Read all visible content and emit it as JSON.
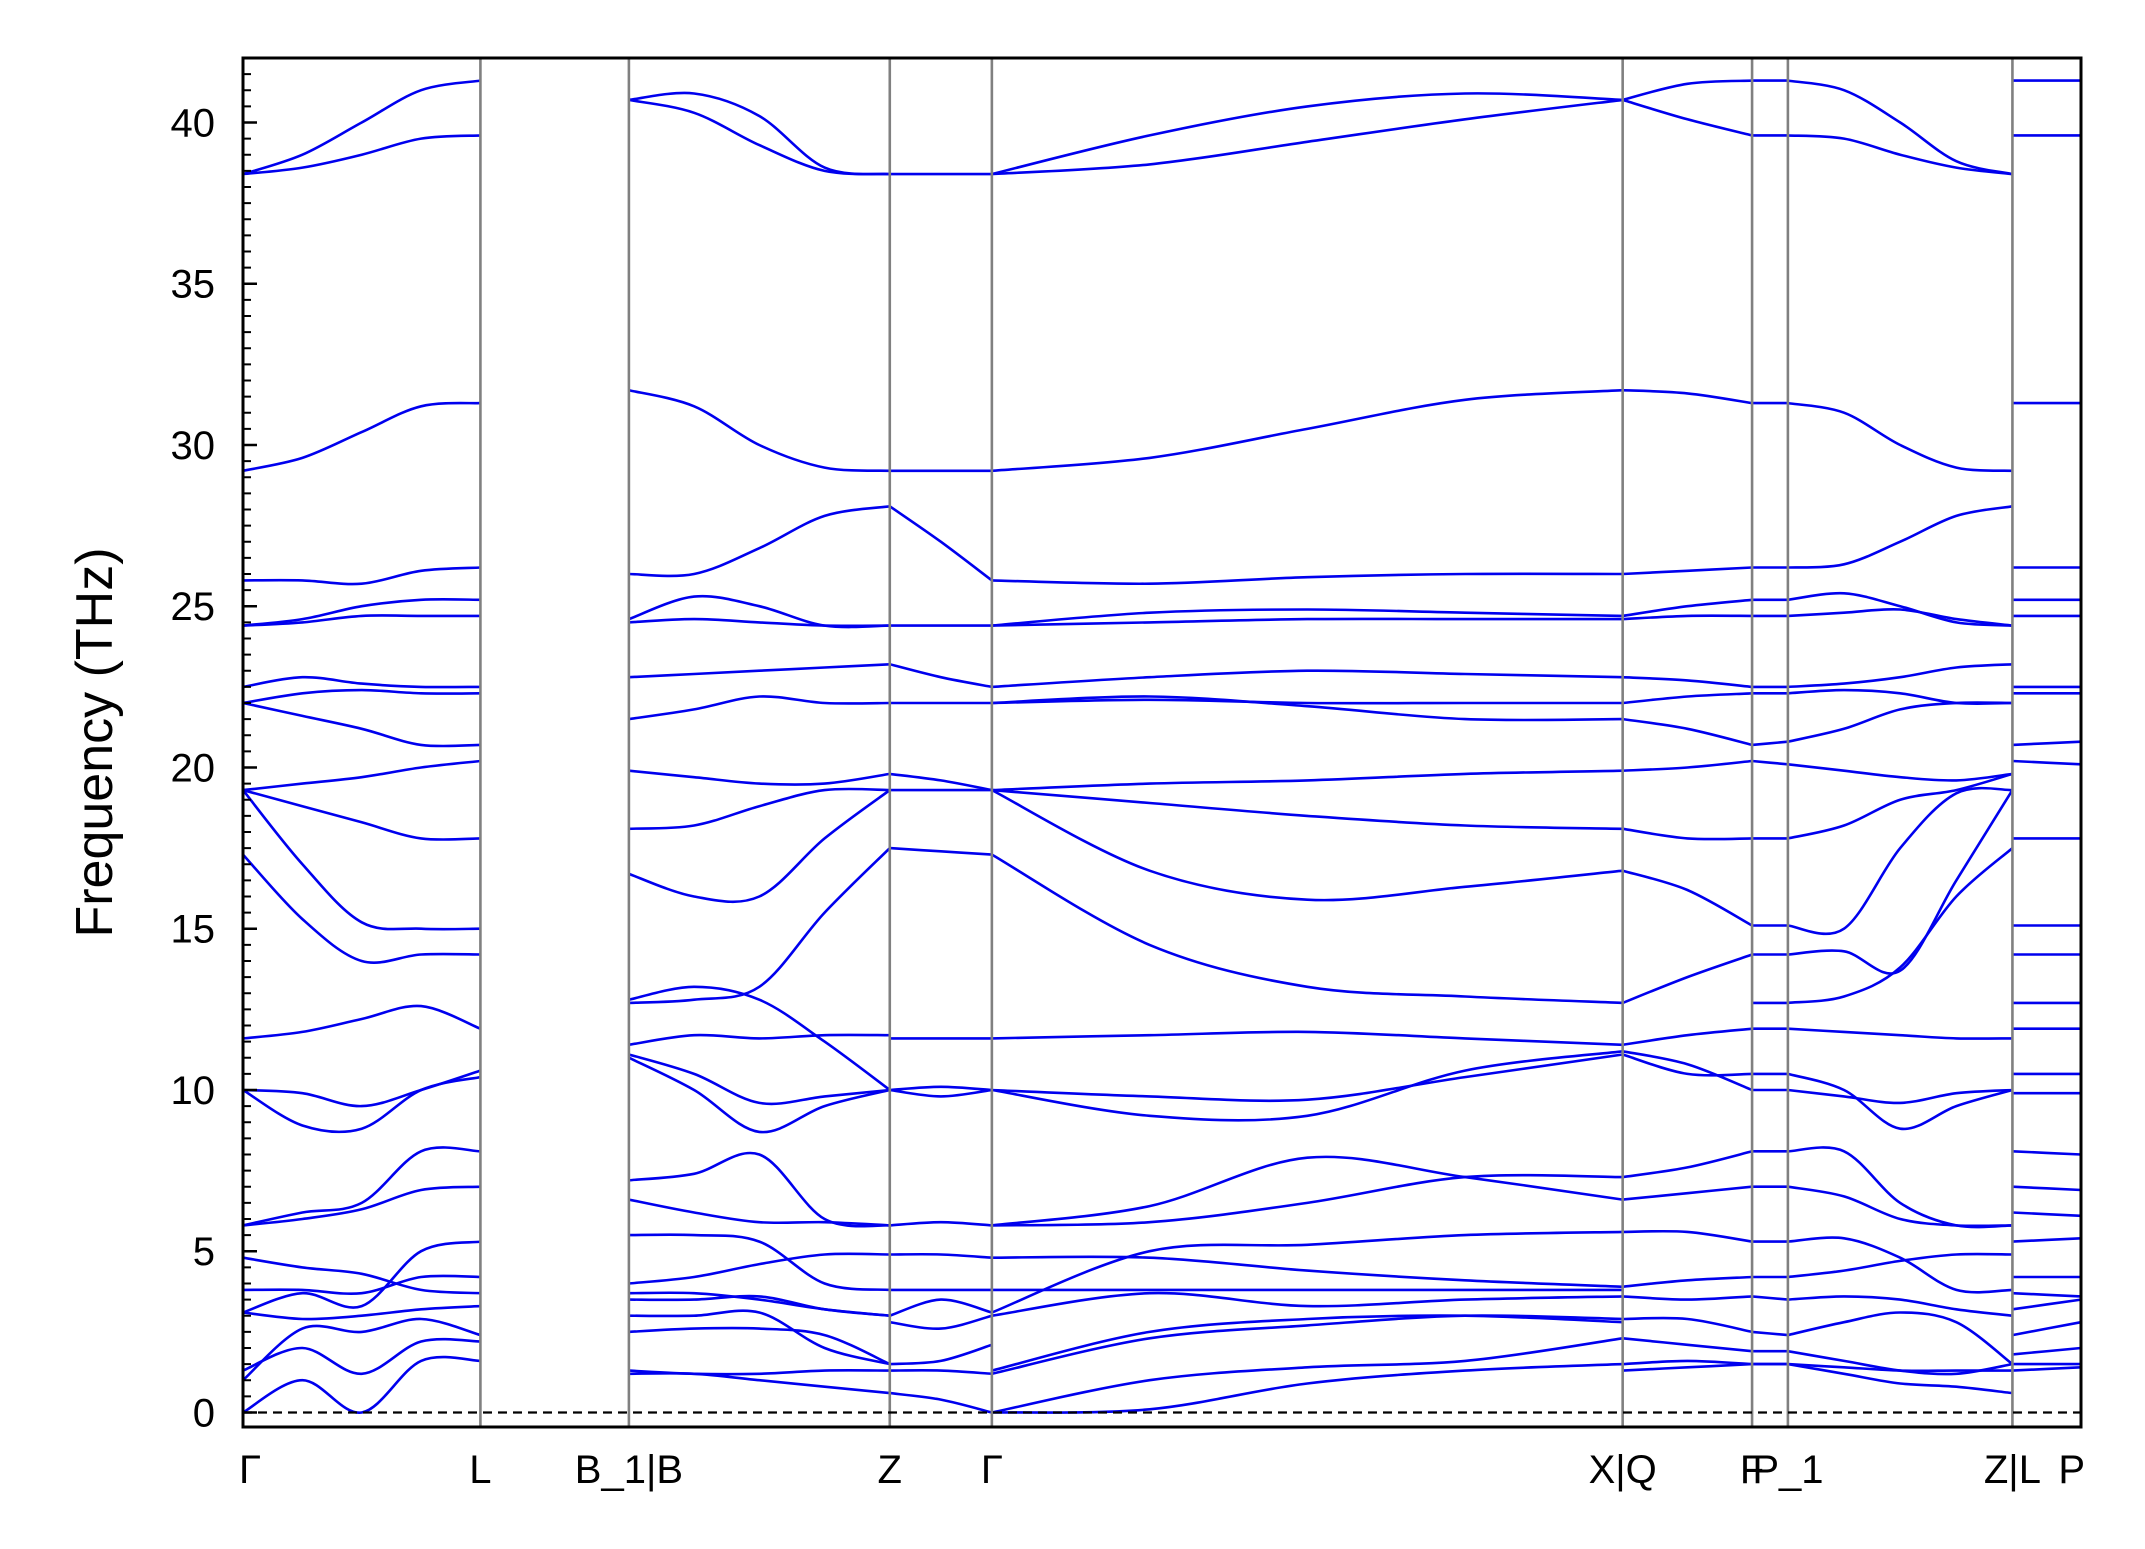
{
  "chart_data": {
    "type": "line",
    "ylabel": "Frequency (THz)",
    "ylim": [
      -0.45,
      42
    ],
    "yticks": [
      0,
      5,
      10,
      15,
      20,
      25,
      30,
      35,
      40
    ],
    "grid": false,
    "band_color": "#0000ee",
    "vline_color": "#808080",
    "zero_line": {
      "y": 0,
      "style": "dashed",
      "color": "#000000"
    },
    "x_labels": [
      "Γ",
      "L",
      "B_1|B",
      "Z",
      "Γ",
      "X|Q",
      "F",
      "P_1",
      "Z|L",
      "P"
    ],
    "x_label_positions": [
      0,
      0.921,
      1.497,
      2.509,
      2.905,
      5.352,
      5.854,
      5.993,
      6.864,
      7.13
    ],
    "segments": [
      {
        "name": "Γ-L",
        "x0": 0,
        "x1": 0.921,
        "bands": [
          [
            0,
            1.0,
            0,
            1.6,
            1.6
          ],
          [
            1.3,
            2.0,
            1.2,
            2.2,
            2.2
          ],
          [
            1.0,
            2.6,
            2.5,
            2.9,
            2.4
          ],
          [
            3.1,
            2.9,
            3.0,
            3.2,
            3.3
          ],
          [
            3.1,
            3.7,
            3.3,
            5.0,
            5.3
          ],
          [
            3.8,
            3.8,
            3.7,
            4.2,
            4.2
          ],
          [
            4.8,
            4.5,
            4.3,
            3.8,
            3.7
          ],
          [
            5.8,
            6.0,
            6.3,
            6.9,
            7.0
          ],
          [
            5.8,
            6.2,
            6.5,
            8.1,
            8.1
          ],
          [
            10.0,
            9.9,
            9.5,
            10.0,
            10.6
          ],
          [
            10.0,
            8.9,
            8.8,
            10.0,
            10.4
          ],
          [
            11.6,
            11.8,
            12.2,
            12.6,
            11.9
          ],
          [
            17.3,
            15.3,
            14.0,
            14.2,
            14.2
          ],
          [
            19.3,
            17.0,
            15.2,
            15.0,
            15.0
          ],
          [
            19.3,
            18.8,
            18.3,
            17.8,
            17.8
          ],
          [
            19.3,
            19.5,
            19.7,
            20.0,
            20.2
          ],
          [
            22.0,
            21.6,
            21.2,
            20.7,
            20.7
          ],
          [
            22.0,
            22.3,
            22.4,
            22.3,
            22.3
          ],
          [
            22.5,
            22.8,
            22.6,
            22.5,
            22.5
          ],
          [
            24.4,
            24.5,
            24.7,
            24.7,
            24.7
          ],
          [
            24.4,
            24.6,
            25.0,
            25.2,
            25.2
          ],
          [
            25.8,
            25.8,
            25.7,
            26.1,
            26.2
          ],
          [
            29.2,
            29.6,
            30.4,
            31.2,
            31.3
          ],
          [
            38.4,
            38.6,
            39.0,
            39.5,
            39.6
          ],
          [
            38.4,
            39.0,
            40.0,
            41.0,
            41.3
          ]
        ]
      },
      {
        "name": "B-Z",
        "x0": 1.497,
        "x1": 2.509,
        "bands": [
          [
            1.2,
            1.2,
            1.0,
            0.8,
            0.6
          ],
          [
            1.3,
            1.2,
            1.2,
            1.3,
            1.3
          ],
          [
            2.5,
            2.6,
            2.6,
            2.4,
            1.5
          ],
          [
            3.0,
            3.0,
            3.1,
            2.0,
            1.5
          ],
          [
            3.5,
            3.5,
            3.6,
            3.2,
            3.0
          ],
          [
            3.7,
            3.7,
            3.5,
            3.2,
            3.0
          ],
          [
            4.0,
            4.2,
            4.6,
            4.9,
            4.9
          ],
          [
            5.5,
            5.5,
            5.3,
            4.0,
            3.8
          ],
          [
            7.2,
            7.4,
            8.0,
            6.0,
            5.8
          ],
          [
            6.6,
            6.2,
            5.9,
            5.9,
            5.8
          ],
          [
            11.1,
            10.5,
            9.6,
            9.8,
            10.0
          ],
          [
            11.0,
            10.0,
            8.7,
            9.5,
            10.0
          ],
          [
            11.4,
            11.7,
            11.6,
            11.7,
            11.7
          ],
          [
            12.7,
            12.8,
            13.2,
            15.5,
            17.5
          ],
          [
            12.8,
            13.2,
            12.8,
            11.5,
            10.0
          ],
          [
            16.7,
            16.0,
            16.0,
            17.8,
            19.3
          ],
          [
            18.1,
            18.2,
            18.8,
            19.3,
            19.3
          ],
          [
            19.9,
            19.7,
            19.5,
            19.5,
            19.8
          ],
          [
            21.5,
            21.8,
            22.2,
            22.0,
            22.0
          ],
          [
            22.8,
            22.9,
            23.0,
            23.1,
            23.2
          ],
          [
            24.5,
            24.6,
            24.5,
            24.4,
            24.4
          ],
          [
            24.6,
            25.3,
            25.0,
            24.4,
            24.4
          ],
          [
            26.0,
            26.0,
            26.8,
            27.8,
            28.1
          ],
          [
            31.7,
            31.2,
            30.0,
            29.3,
            29.2
          ],
          [
            40.7,
            40.3,
            39.3,
            38.5,
            38.4
          ],
          [
            40.7,
            40.9,
            40.2,
            38.6,
            38.4
          ]
        ]
      },
      {
        "name": "Z-Γ",
        "x0": 2.509,
        "x1": 2.905,
        "bands": [
          [
            0.6,
            0.4,
            0.0
          ],
          [
            1.3,
            1.3,
            1.2
          ],
          [
            1.5,
            1.6,
            2.1
          ],
          [
            2.8,
            2.6,
            3.0
          ],
          [
            3.0,
            3.5,
            3.1
          ],
          [
            3.8,
            3.8,
            3.8
          ],
          [
            4.9,
            4.9,
            4.8
          ],
          [
            5.8,
            5.9,
            5.8
          ],
          [
            10.0,
            9.8,
            10.0
          ],
          [
            10.0,
            10.1,
            10.0
          ],
          [
            11.6,
            11.6,
            11.6
          ],
          [
            17.5,
            17.4,
            17.3
          ],
          [
            19.3,
            19.3,
            19.3
          ],
          [
            19.8,
            19.6,
            19.3
          ],
          [
            22.0,
            22.0,
            22.0
          ],
          [
            23.2,
            22.8,
            22.5
          ],
          [
            24.4,
            24.4,
            24.4
          ],
          [
            28.1,
            27.0,
            25.8
          ],
          [
            29.2,
            29.2,
            29.2
          ],
          [
            38.4,
            38.4,
            38.4
          ]
        ]
      },
      {
        "name": "Γ-X",
        "x0": 2.905,
        "x1": 5.352,
        "bands": [
          [
            0,
            0.1,
            0.9,
            1.3,
            1.5
          ],
          [
            0,
            1.0,
            1.4,
            1.6,
            2.3
          ],
          [
            1.2,
            2.3,
            2.7,
            3.0,
            2.9
          ],
          [
            1.3,
            2.5,
            2.9,
            3.0,
            2.8
          ],
          [
            3.0,
            3.7,
            3.3,
            3.5,
            3.6
          ],
          [
            3.1,
            5.0,
            5.2,
            5.5,
            5.6
          ],
          [
            3.8,
            3.8,
            3.8,
            3.8,
            3.8
          ],
          [
            4.8,
            4.8,
            4.4,
            4.1,
            3.9
          ],
          [
            5.8,
            6.4,
            7.9,
            7.3,
            6.6
          ],
          [
            5.8,
            5.9,
            6.5,
            7.3,
            7.3
          ],
          [
            10.0,
            9.2,
            9.2,
            10.6,
            11.2
          ],
          [
            10.0,
            9.8,
            9.7,
            10.4,
            11.1
          ],
          [
            11.6,
            11.7,
            11.8,
            11.6,
            11.4
          ],
          [
            17.3,
            14.5,
            13.2,
            12.9,
            12.7
          ],
          [
            19.3,
            16.8,
            15.9,
            16.3,
            16.8
          ],
          [
            19.3,
            18.9,
            18.5,
            18.2,
            18.1
          ],
          [
            19.3,
            19.5,
            19.6,
            19.8,
            19.9
          ],
          [
            22.0,
            22.2,
            21.9,
            21.5,
            21.5
          ],
          [
            22.0,
            22.1,
            22.0,
            22.0,
            22.0
          ],
          [
            22.5,
            22.8,
            23.0,
            22.9,
            22.8
          ],
          [
            24.4,
            24.5,
            24.6,
            24.6,
            24.6
          ],
          [
            24.4,
            24.8,
            24.9,
            24.8,
            24.7
          ],
          [
            25.8,
            25.7,
            25.9,
            26.0,
            26.0
          ],
          [
            29.2,
            29.6,
            30.5,
            31.4,
            31.7
          ],
          [
            38.4,
            39.6,
            40.5,
            40.9,
            40.7
          ],
          [
            38.4,
            38.7,
            39.4,
            40.1,
            40.7
          ]
        ]
      },
      {
        "name": "Q-F",
        "x0": 5.352,
        "x1": 5.854,
        "bands": [
          [
            1.3,
            1.4,
            1.5
          ],
          [
            1.5,
            1.6,
            1.5
          ],
          [
            2.3,
            2.1,
            1.9
          ],
          [
            2.9,
            2.9,
            2.5
          ],
          [
            3.6,
            3.5,
            3.6
          ],
          [
            3.9,
            4.1,
            4.2
          ],
          [
            5.6,
            5.6,
            5.3
          ],
          [
            7.3,
            7.6,
            8.1
          ],
          [
            6.6,
            6.8,
            7.0
          ],
          [
            11.2,
            10.8,
            10.0
          ],
          [
            11.1,
            10.5,
            10.5
          ],
          [
            11.4,
            11.7,
            11.9
          ],
          [
            12.7,
            13.5,
            14.2
          ],
          [
            16.8,
            16.2,
            15.1
          ],
          [
            18.1,
            17.8,
            17.8
          ],
          [
            19.9,
            20.0,
            20.2
          ],
          [
            21.5,
            21.2,
            20.7
          ],
          [
            22.8,
            22.7,
            22.5
          ],
          [
            22.0,
            22.2,
            22.3
          ],
          [
            24.6,
            24.7,
            24.7
          ],
          [
            24.7,
            25.0,
            25.2
          ],
          [
            26.0,
            26.1,
            26.2
          ],
          [
            31.7,
            31.6,
            31.3
          ],
          [
            40.7,
            40.1,
            39.6
          ],
          [
            40.7,
            41.2,
            41.3
          ]
        ]
      },
      {
        "name": "F-P_1",
        "x0": 5.854,
        "x1": 5.993,
        "bands": [
          [
            1.5,
            1.5
          ],
          [
            1.5,
            1.5
          ],
          [
            1.9,
            1.9
          ],
          [
            2.5,
            2.4
          ],
          [
            3.6,
            3.5
          ],
          [
            4.2,
            4.2
          ],
          [
            5.3,
            5.3
          ],
          [
            8.1,
            8.1
          ],
          [
            7.0,
            7.0
          ],
          [
            10.0,
            10.0
          ],
          [
            10.5,
            10.5
          ],
          [
            11.9,
            11.9
          ],
          [
            12.7,
            12.7
          ],
          [
            14.2,
            14.2
          ],
          [
            15.1,
            15.1
          ],
          [
            17.8,
            17.8
          ],
          [
            20.2,
            20.1
          ],
          [
            20.7,
            20.8
          ],
          [
            22.3,
            22.3
          ],
          [
            22.5,
            22.5
          ],
          [
            24.7,
            24.7
          ],
          [
            25.2,
            25.2
          ],
          [
            26.2,
            26.2
          ],
          [
            31.3,
            31.3
          ],
          [
            39.6,
            39.6
          ],
          [
            41.3,
            41.3
          ]
        ]
      },
      {
        "name": "P_1-Z",
        "x0": 5.993,
        "x1": 6.864,
        "bands": [
          [
            1.5,
            1.2,
            0.9,
            0.8,
            0.6
          ],
          [
            1.5,
            1.4,
            1.3,
            1.3,
            1.3
          ],
          [
            1.9,
            1.6,
            1.3,
            1.2,
            1.5
          ],
          [
            2.4,
            2.8,
            3.1,
            2.8,
            1.5
          ],
          [
            3.5,
            3.6,
            3.5,
            3.2,
            3.0
          ],
          [
            4.2,
            4.4,
            4.7,
            4.9,
            4.9
          ],
          [
            5.3,
            5.4,
            4.8,
            3.8,
            3.8
          ],
          [
            8.1,
            8.1,
            6.5,
            5.8,
            5.8
          ],
          [
            7.0,
            6.7,
            6.0,
            5.8,
            5.8
          ],
          [
            10.0,
            9.8,
            9.6,
            9.9,
            10.0
          ],
          [
            10.5,
            10.0,
            8.8,
            9.5,
            10.0
          ],
          [
            11.9,
            11.8,
            11.7,
            11.6,
            11.6
          ],
          [
            12.7,
            12.9,
            13.8,
            16.0,
            17.5
          ],
          [
            14.2,
            14.3,
            13.7,
            16.5,
            19.3
          ],
          [
            15.1,
            15.0,
            17.5,
            19.2,
            19.3
          ],
          [
            17.8,
            18.2,
            19.0,
            19.3,
            19.8
          ],
          [
            20.1,
            19.9,
            19.7,
            19.6,
            19.8
          ],
          [
            20.8,
            21.2,
            21.8,
            22.0,
            22.0
          ],
          [
            22.3,
            22.4,
            22.3,
            22.0,
            22.0
          ],
          [
            22.5,
            22.6,
            22.8,
            23.1,
            23.2
          ],
          [
            24.7,
            24.8,
            24.9,
            24.6,
            24.4
          ],
          [
            25.2,
            25.4,
            25.0,
            24.5,
            24.4
          ],
          [
            26.2,
            26.3,
            27.0,
            27.8,
            28.1
          ],
          [
            31.3,
            31.0,
            30.0,
            29.3,
            29.2
          ],
          [
            39.6,
            39.5,
            39.0,
            38.6,
            38.4
          ],
          [
            41.3,
            41.0,
            40.0,
            38.8,
            38.4
          ]
        ]
      },
      {
        "name": "L-P",
        "x0": 6.864,
        "x1": 7.13,
        "bands": [
          [
            1.3,
            1.4
          ],
          [
            1.5,
            1.5
          ],
          [
            1.8,
            2.0
          ],
          [
            2.4,
            2.8
          ],
          [
            3.2,
            3.5
          ],
          [
            3.7,
            3.6
          ],
          [
            4.2,
            4.2
          ],
          [
            5.3,
            5.4
          ],
          [
            6.2,
            6.1
          ],
          [
            7.0,
            6.9
          ],
          [
            8.1,
            8.0
          ],
          [
            9.9,
            9.9
          ],
          [
            10.5,
            10.5
          ],
          [
            11.9,
            11.9
          ],
          [
            12.7,
            12.7
          ],
          [
            14.2,
            14.2
          ],
          [
            15.1,
            15.1
          ],
          [
            17.8,
            17.8
          ],
          [
            20.2,
            20.1
          ],
          [
            20.7,
            20.8
          ],
          [
            22.3,
            22.3
          ],
          [
            22.5,
            22.5
          ],
          [
            24.7,
            24.7
          ],
          [
            25.2,
            25.2
          ],
          [
            26.2,
            26.2
          ],
          [
            31.3,
            31.3
          ],
          [
            39.6,
            39.6
          ],
          [
            41.3,
            41.3
          ]
        ]
      }
    ]
  }
}
